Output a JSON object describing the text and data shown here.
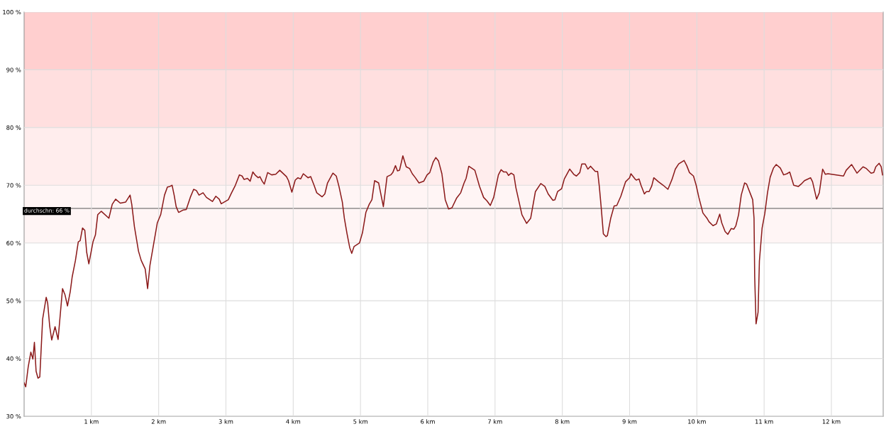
{
  "chart_data": {
    "type": "line",
    "x": [
      0,
      0.024,
      0.06,
      0.1,
      0.13,
      0.153,
      0.178,
      0.206,
      0.233,
      0.275,
      0.328,
      0.35,
      0.38,
      0.41,
      0.46,
      0.505,
      0.571,
      0.606,
      0.645,
      0.686,
      0.714,
      0.763,
      0.805,
      0.833,
      0.868,
      0.902,
      0.93,
      0.962,
      1.024,
      1.06,
      1.094,
      1.146,
      1.26,
      1.31,
      1.36,
      1.43,
      1.51,
      1.575,
      1.6,
      1.64,
      1.7,
      1.74,
      1.8,
      1.836,
      1.87,
      1.913,
      1.98,
      2.03,
      2.087,
      2.13,
      2.167,
      2.2,
      2.23,
      2.26,
      2.296,
      2.36,
      2.41,
      2.47,
      2.52,
      2.56,
      2.6,
      2.66,
      2.71,
      2.8,
      2.85,
      2.9,
      2.93,
      3.035,
      3.08,
      3.14,
      3.2,
      3.24,
      3.27,
      3.32,
      3.36,
      3.4,
      3.44,
      3.48,
      3.505,
      3.54,
      3.57,
      3.62,
      3.68,
      3.74,
      3.8,
      3.9,
      3.93,
      3.98,
      4.03,
      4.07,
      4.11,
      4.15,
      4.22,
      4.26,
      4.31,
      4.35,
      4.43,
      4.47,
      4.51,
      4.59,
      4.64,
      4.68,
      4.73,
      4.76,
      4.8,
      4.84,
      4.87,
      4.905,
      4.985,
      5.03,
      5.08,
      5.13,
      5.17,
      5.21,
      5.27,
      5.34,
      5.395,
      5.45,
      5.48,
      5.52,
      5.55,
      5.58,
      5.63,
      5.68,
      5.73,
      5.77,
      5.81,
      5.87,
      5.94,
      5.99,
      6.03,
      6.08,
      6.12,
      6.16,
      6.21,
      6.26,
      6.31,
      6.36,
      6.43,
      6.49,
      6.54,
      6.57,
      6.61,
      6.7,
      6.77,
      6.83,
      6.88,
      6.93,
      6.98,
      7.05,
      7.09,
      7.13,
      7.17,
      7.2,
      7.24,
      7.28,
      7.31,
      7.4,
      7.47,
      7.53,
      7.6,
      7.68,
      7.74,
      7.79,
      7.86,
      7.89,
      7.93,
      7.99,
      8.03,
      8.11,
      8.17,
      8.21,
      8.26,
      8.29,
      8.34,
      8.38,
      8.42,
      8.49,
      8.525,
      8.55,
      8.58,
      8.61,
      8.65,
      8.67,
      8.72,
      8.77,
      8.81,
      8.87,
      8.94,
      9.0,
      9.02,
      9.08,
      9.1,
      9.14,
      9.17,
      9.22,
      9.25,
      9.29,
      9.33,
      9.36,
      9.43,
      9.5,
      9.57,
      9.63,
      9.68,
      9.73,
      9.81,
      9.85,
      9.89,
      9.95,
      9.99,
      10.03,
      10.09,
      10.15,
      10.18,
      10.24,
      10.29,
      10.34,
      10.37,
      10.42,
      10.46,
      10.51,
      10.55,
      10.58,
      10.62,
      10.66,
      10.71,
      10.74,
      10.79,
      10.83,
      10.85,
      10.86,
      10.88,
      10.91,
      10.93,
      10.97,
      11.01,
      11.05,
      11.09,
      11.14,
      11.18,
      11.24,
      11.29,
      11.34,
      11.38,
      11.44,
      11.51,
      11.55,
      11.6,
      11.69,
      11.72,
      11.78,
      11.82,
      11.87,
      11.91,
      11.95,
      12.18,
      12.22,
      12.3,
      12.38,
      12.47,
      12.52,
      12.59,
      12.63,
      12.66,
      12.71,
      12.74,
      12.76
    ],
    "series": [
      {
        "color": "#8b1a1a",
        "values": [
          35.8,
          35.1,
          38.5,
          41.1,
          39.9,
          42.8,
          37.8,
          36.6,
          36.8,
          46.8,
          50.6,
          49.6,
          45.6,
          43.2,
          45.5,
          43.3,
          52.1,
          51.1,
          49.1,
          51.6,
          54.1,
          57.0,
          60.2,
          60.4,
          62.6,
          62.2,
          58.4,
          56.4,
          60.2,
          61.4,
          64.9,
          65.5,
          64.3,
          66.7,
          67.6,
          66.9,
          67.1,
          68.3,
          66.7,
          62.8,
          58.6,
          57.0,
          55.5,
          52.1,
          56.1,
          59.0,
          63.5,
          64.9,
          68.3,
          69.7,
          69.8,
          70.0,
          68.3,
          66.3,
          65.3,
          65.7,
          65.8,
          67.9,
          69.3,
          69.1,
          68.3,
          68.7,
          67.9,
          67.2,
          68.1,
          67.6,
          66.8,
          67.5,
          68.6,
          70.0,
          71.8,
          71.6,
          71.0,
          71.2,
          70.7,
          72.3,
          71.7,
          71.3,
          71.5,
          70.7,
          70.2,
          72.2,
          71.8,
          71.9,
          72.6,
          71.5,
          70.8,
          68.8,
          70.9,
          71.3,
          71.1,
          72.0,
          71.3,
          71.5,
          70.0,
          68.7,
          68.0,
          68.5,
          70.4,
          72.1,
          71.6,
          69.8,
          67.1,
          64.3,
          61.6,
          59.2,
          58.2,
          59.4,
          60.0,
          61.8,
          65.3,
          66.7,
          67.5,
          70.8,
          70.4,
          66.3,
          71.5,
          71.8,
          72.2,
          73.4,
          72.5,
          72.6,
          75.1,
          73.2,
          72.9,
          72.0,
          71.4,
          70.4,
          70.7,
          71.8,
          72.2,
          74.0,
          74.8,
          74.2,
          72.0,
          67.5,
          65.9,
          66.1,
          67.8,
          68.7,
          70.4,
          71.2,
          73.3,
          72.6,
          69.8,
          67.9,
          67.3,
          66.5,
          67.9,
          71.8,
          72.7,
          72.3,
          72.3,
          71.7,
          72.1,
          71.8,
          69.6,
          64.9,
          63.4,
          64.3,
          68.9,
          70.3,
          69.8,
          68.5,
          67.4,
          67.5,
          68.9,
          69.4,
          71.1,
          72.8,
          71.9,
          71.6,
          72.2,
          73.7,
          73.7,
          72.8,
          73.3,
          72.4,
          72.4,
          69.8,
          65.9,
          61.6,
          61.1,
          61.3,
          64.3,
          66.4,
          66.5,
          68.1,
          70.6,
          71.3,
          72.0,
          71.1,
          70.9,
          71.1,
          70.0,
          68.5,
          68.9,
          68.9,
          69.9,
          71.3,
          70.6,
          70.0,
          69.3,
          71.0,
          72.8,
          73.7,
          74.3,
          73.4,
          72.2,
          71.6,
          70.0,
          67.9,
          65.2,
          64.3,
          63.7,
          63.0,
          63.3,
          65.0,
          63.5,
          62.0,
          61.5,
          62.5,
          62.4,
          63.0,
          64.9,
          68.3,
          70.4,
          70.2,
          68.7,
          67.5,
          64.3,
          54.1,
          46.0,
          48.0,
          56.9,
          62.6,
          65.1,
          68.7,
          71.4,
          73.0,
          73.6,
          73.0,
          71.8,
          72.0,
          72.3,
          70.0,
          69.8,
          70.2,
          70.8,
          71.3,
          70.6,
          67.6,
          68.7,
          72.8,
          71.9,
          72.0,
          71.6,
          72.6,
          73.6,
          72.1,
          73.2,
          72.9,
          72.1,
          72.2,
          73.2,
          73.8,
          73.2,
          71.8
        ]
      }
    ],
    "xlim": [
      0,
      12.77
    ],
    "xticks": [
      {
        "value": 1,
        "label": "1 km"
      },
      {
        "value": 2,
        "label": "2 km"
      },
      {
        "value": 3,
        "label": "3 km"
      },
      {
        "value": 4,
        "label": "4 km"
      },
      {
        "value": 5,
        "label": "5 km"
      },
      {
        "value": 6,
        "label": "6 km"
      },
      {
        "value": 7,
        "label": "7 km"
      },
      {
        "value": 8,
        "label": "8 km"
      },
      {
        "value": 9,
        "label": "9 km"
      },
      {
        "value": 10,
        "label": "10 km"
      },
      {
        "value": 11,
        "label": "11 km"
      },
      {
        "value": 12,
        "label": "12 km"
      }
    ],
    "ylim": [
      30,
      100
    ],
    "yticks": [
      {
        "value": 30,
        "label": "30 %"
      },
      {
        "value": 40,
        "label": "40 %"
      },
      {
        "value": 50,
        "label": "50 %"
      },
      {
        "value": 60,
        "label": "60 %"
      },
      {
        "value": 70,
        "label": "70 %"
      },
      {
        "value": 80,
        "label": "80 %"
      },
      {
        "value": 90,
        "label": "90 %"
      },
      {
        "value": 100,
        "label": "100 %"
      }
    ],
    "bands": [
      {
        "axis": "y",
        "from": 90,
        "to": 100,
        "color": "#ffcfcf"
      },
      {
        "axis": "y",
        "from": 80,
        "to": 90,
        "color": "#ffdfdf"
      },
      {
        "axis": "y",
        "from": 70,
        "to": 80,
        "color": "#ffeded"
      },
      {
        "axis": "y",
        "from": 60,
        "to": 70,
        "color": "#fff5f5"
      }
    ],
    "ref_lines": [
      {
        "axis": "y",
        "value": 66,
        "label": "durchschn: 66 %",
        "color": "#777777"
      }
    ],
    "grid": true,
    "line_style": "solid",
    "marker": "none"
  }
}
